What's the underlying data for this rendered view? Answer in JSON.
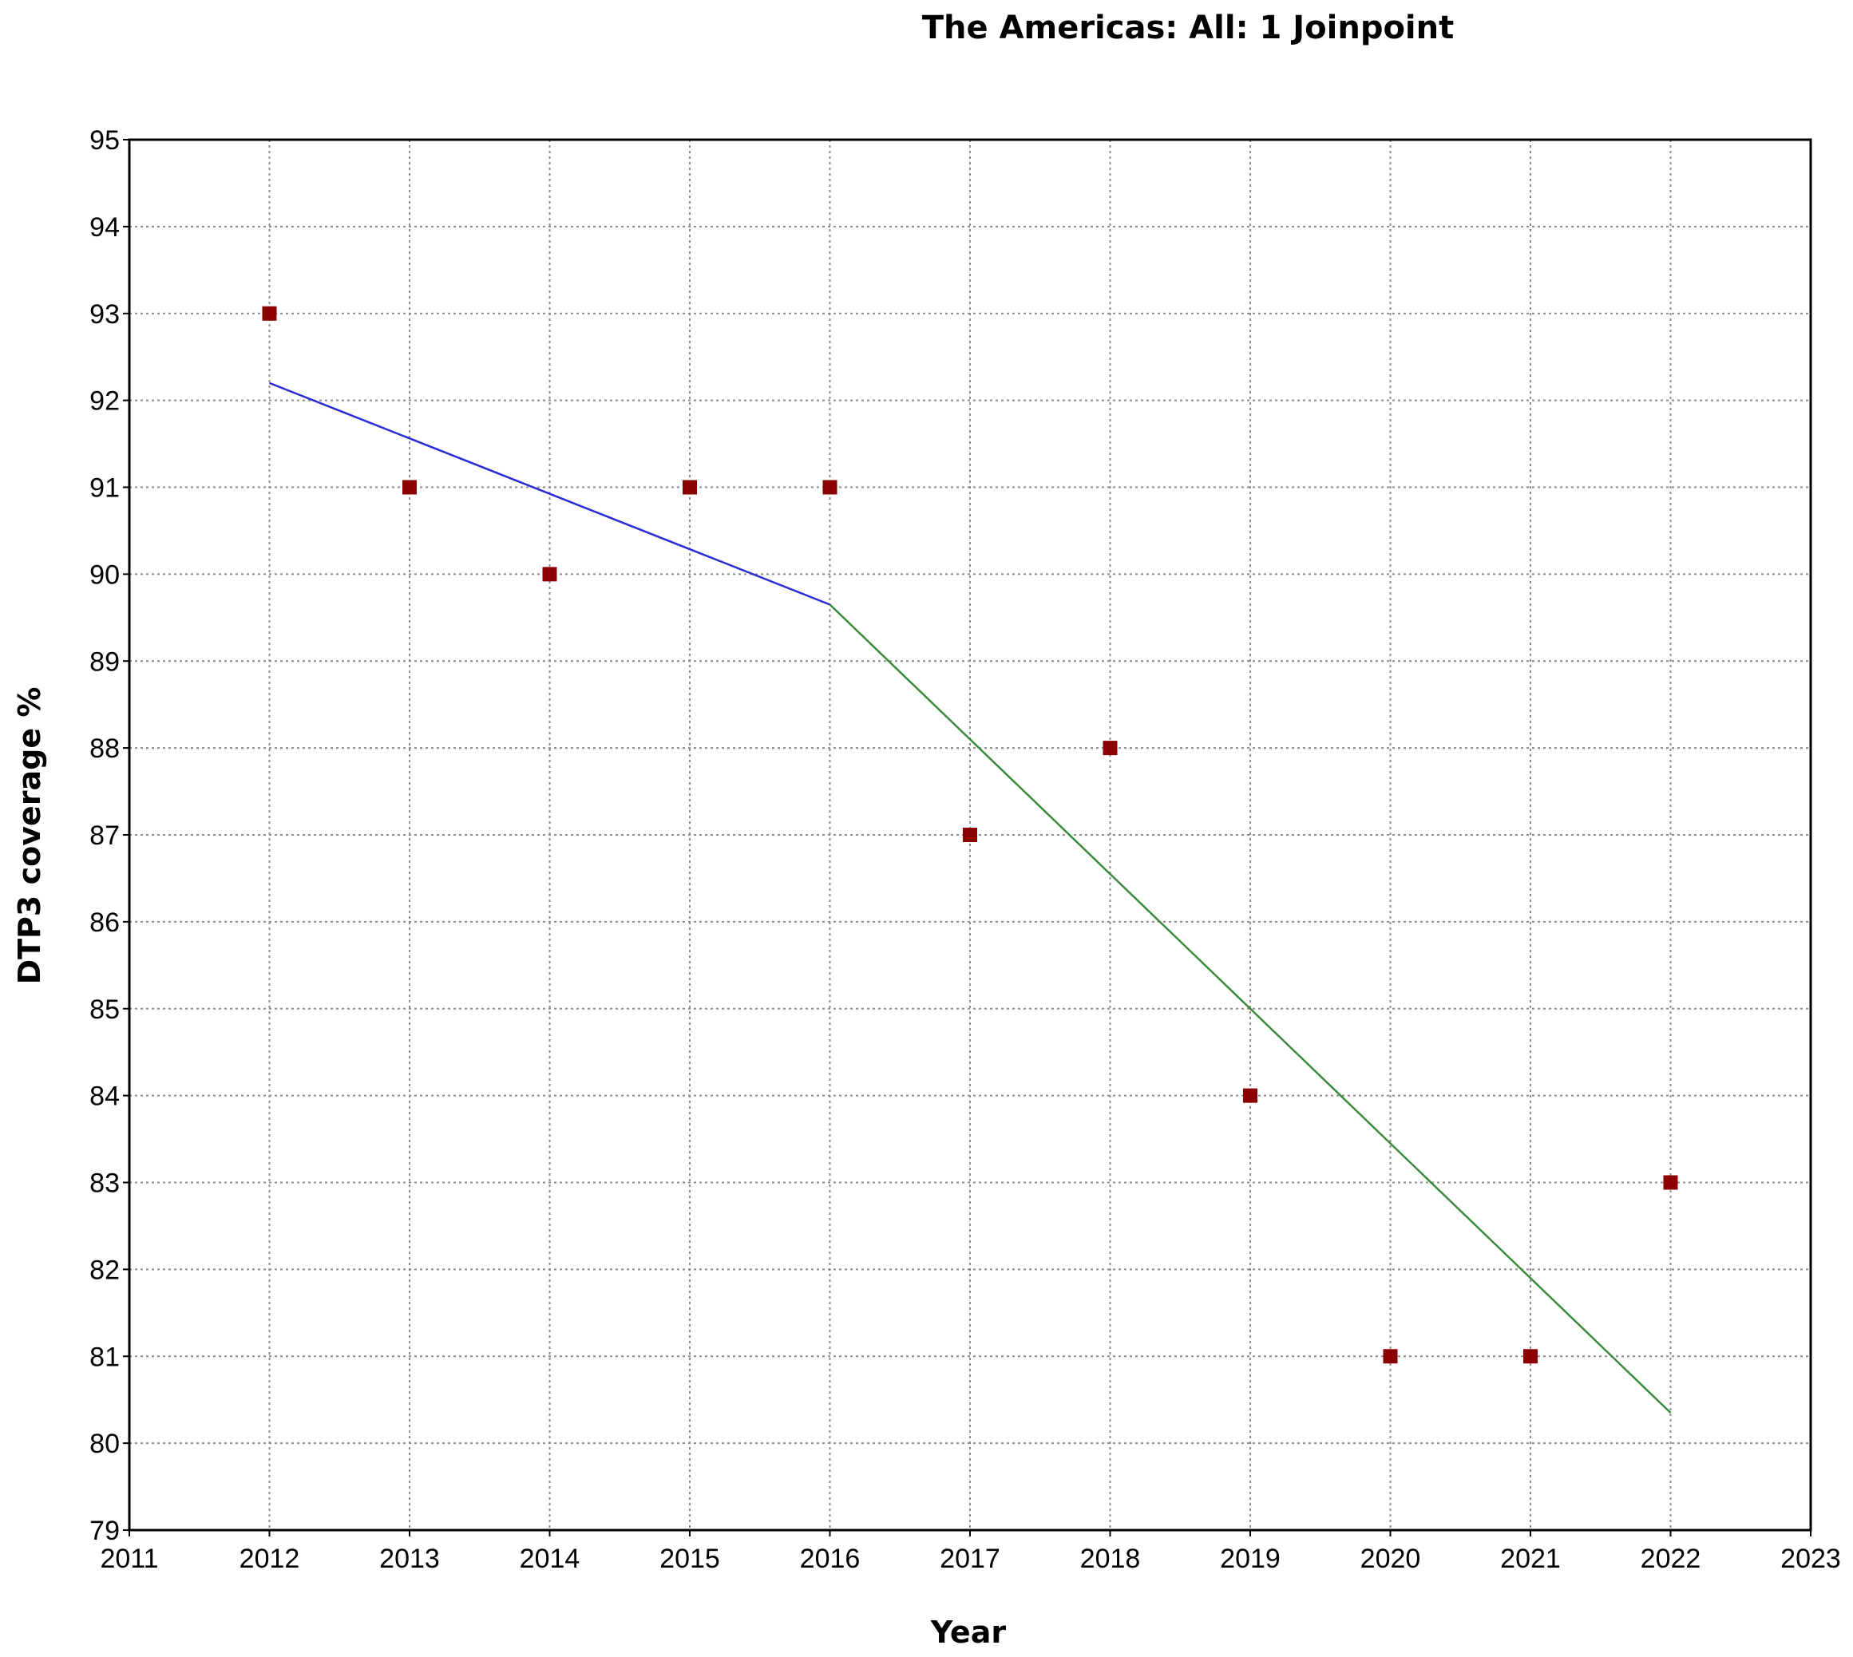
{
  "chart_data": {
    "type": "scatter",
    "title": "The Americas: All: 1 Joinpoint",
    "xlabel": "Year",
    "ylabel": "DTP3 coverage %",
    "xlim": [
      2011,
      2023
    ],
    "ylim": [
      79,
      95
    ],
    "x_ticks": [
      "2011",
      "2012",
      "2013",
      "2014",
      "2015",
      "2016",
      "2017",
      "2018",
      "2019",
      "2020",
      "2021",
      "2022",
      "2023"
    ],
    "y_ticks": [
      "79",
      "80",
      "81",
      "82",
      "83",
      "84",
      "85",
      "86",
      "87",
      "88",
      "89",
      "90",
      "91",
      "92",
      "93",
      "94",
      "95"
    ],
    "grid": true,
    "points": {
      "color": "#8b0000",
      "x": [
        2012,
        2013,
        2014,
        2015,
        2016,
        2017,
        2018,
        2019,
        2020,
        2021,
        2022
      ],
      "y": [
        93,
        91,
        90,
        91,
        91,
        87,
        88,
        84,
        81,
        81,
        83
      ]
    },
    "segments": [
      {
        "color": "#2b2bd6",
        "x": [
          2012,
          2016
        ],
        "y": [
          92.2,
          89.65
        ]
      },
      {
        "color": "#3c8a3c",
        "x": [
          2016,
          2022
        ],
        "y": [
          89.65,
          80.35
        ]
      }
    ]
  }
}
